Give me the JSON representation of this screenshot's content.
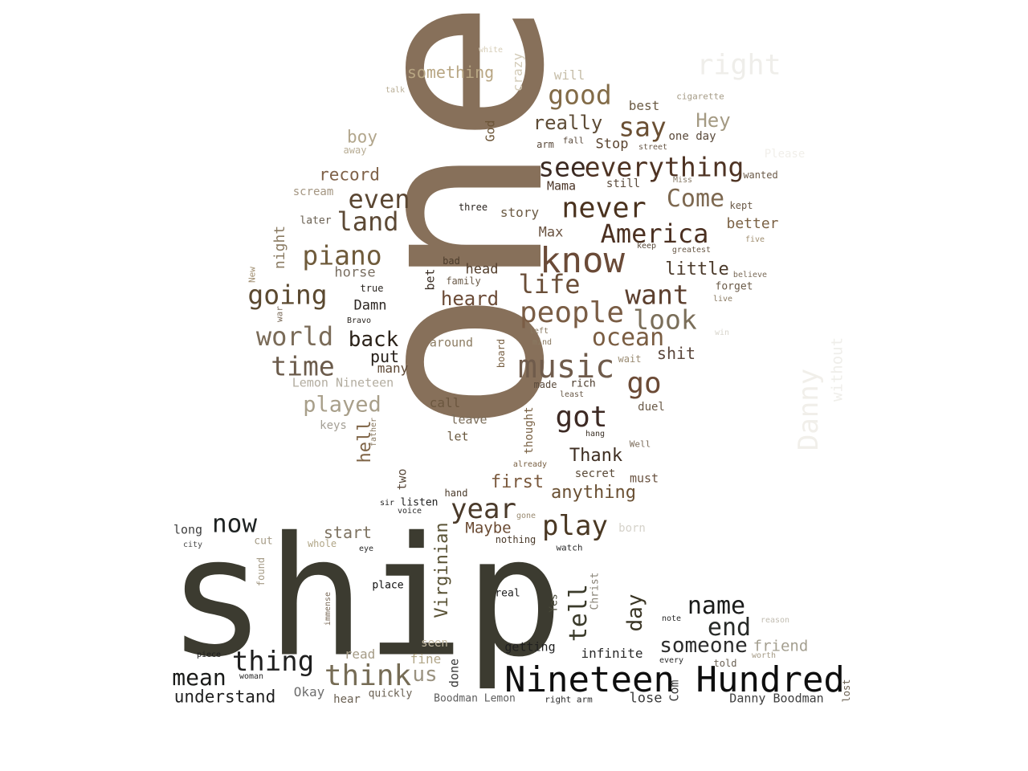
{
  "words": [
    {
      "t": "one",
      "c": "#87705a"
    },
    {
      "t": "ship",
      "c": "#3c3b30"
    },
    {
      "t": "Nineteen Hundred",
      "c": "#0e0e0e"
    },
    {
      "t": "know",
      "c": "#6a4a37"
    },
    {
      "t": "music",
      "c": "#6f5b4b"
    },
    {
      "t": "people",
      "c": "#7a5d45"
    },
    {
      "t": "everything",
      "c": "#4e3323"
    },
    {
      "t": "see",
      "c": "#3b2a22"
    },
    {
      "t": "year",
      "c": "#4a3a2a"
    },
    {
      "t": "play",
      "c": "#4a3823"
    },
    {
      "t": "got",
      "c": "#3d2a24"
    },
    {
      "t": "go",
      "c": "#6b4a35"
    },
    {
      "t": "thing",
      "c": "#1e1e1e"
    },
    {
      "t": "think",
      "c": "#766c55"
    },
    {
      "t": "world",
      "c": "#7a6b58"
    },
    {
      "t": "time",
      "c": "#6b5b4b"
    },
    {
      "t": "going",
      "c": "#5b4930"
    },
    {
      "t": "piano",
      "c": "#6f5b3b"
    },
    {
      "t": "land",
      "c": "#5c4935"
    },
    {
      "t": "even",
      "c": "#5a4632"
    },
    {
      "t": "never",
      "c": "#4a321e"
    },
    {
      "t": "America",
      "c": "#4b3021"
    },
    {
      "t": "life",
      "c": "#6a4e38"
    },
    {
      "t": "want",
      "c": "#5c3f2e"
    },
    {
      "t": "look",
      "c": "#7a6e59"
    },
    {
      "t": "ocean",
      "c": "#7a5d42"
    },
    {
      "t": "good",
      "c": "#826b47"
    },
    {
      "t": "say",
      "c": "#6a4f33"
    },
    {
      "t": "right",
      "c": "#efeeea"
    },
    {
      "t": "Come",
      "c": "#7d6850"
    },
    {
      "t": "name",
      "c": "#1a1b1a"
    },
    {
      "t": "end",
      "c": "#272a27"
    },
    {
      "t": "someone",
      "c": "#2b2b2b"
    },
    {
      "t": "now",
      "c": "#1d2121"
    },
    {
      "t": "mean",
      "c": "#191a18"
    },
    {
      "t": "tell",
      "c": "#3b3b2b"
    },
    {
      "t": "day",
      "c": "#3a3524"
    },
    {
      "t": "played",
      "c": "#a89f8a"
    },
    {
      "t": "back",
      "c": "#2b2219"
    },
    {
      "t": "heard",
      "c": "#6b4b37"
    },
    {
      "t": "really",
      "c": "#5e4c36"
    },
    {
      "t": "record",
      "c": "#7f6148"
    },
    {
      "t": "first",
      "c": "#7b5a3e"
    },
    {
      "t": "anything",
      "c": "#6a5033"
    },
    {
      "t": "Thank",
      "c": "#3e2e22"
    },
    {
      "t": "little",
      "c": "#4b3a2b"
    },
    {
      "t": "Hey",
      "c": "#a49a83"
    },
    {
      "t": "Danny",
      "c": "#f1efea"
    },
    {
      "t": "Virginian",
      "c": "#5a5336"
    },
    {
      "t": "understand",
      "c": "#1f1f1f"
    },
    {
      "t": "Maybe",
      "c": "#6b4b33"
    },
    {
      "t": "start",
      "c": "#7d7260"
    },
    {
      "t": "something",
      "c": "#b8a683"
    },
    {
      "t": "boy",
      "c": "#b2a68c"
    },
    {
      "t": "put",
      "c": "#241d17"
    },
    {
      "t": "shit",
      "c": "#5a463b"
    },
    {
      "t": "us",
      "c": "#9a9280"
    },
    {
      "t": "hell",
      "c": "#7e6345"
    },
    {
      "t": "friend",
      "c": "#a49f90"
    },
    {
      "t": "night",
      "c": "#8a7b62"
    },
    {
      "t": "horse",
      "c": "#7a6f62"
    },
    {
      "t": "Damn",
      "c": "#2c2622"
    },
    {
      "t": "many",
      "c": "#5f4a37"
    },
    {
      "t": "better",
      "c": "#7b6245"
    },
    {
      "t": "best",
      "c": "#6a5a43"
    },
    {
      "t": "Stop",
      "c": "#5c4632"
    },
    {
      "t": "Mama",
      "c": "#4a3426"
    },
    {
      "t": "story",
      "c": "#6b5a43"
    },
    {
      "t": "Max",
      "c": "#6a5341"
    },
    {
      "t": "head",
      "c": "#55402e"
    },
    {
      "t": "Okay",
      "c": "#6e6e6e"
    },
    {
      "t": "long",
      "c": "#3e3e3e"
    },
    {
      "t": "read",
      "c": "#a59b86"
    },
    {
      "t": "fine",
      "c": "#b1a687"
    },
    {
      "t": "call",
      "c": "#6b573f"
    },
    {
      "t": "leave",
      "c": "#7b6d5a"
    },
    {
      "t": "let",
      "c": "#6b5a40"
    },
    {
      "t": "around",
      "c": "#8c7c62"
    },
    {
      "t": "without",
      "c": "#efeeea"
    },
    {
      "t": "must",
      "c": "#6a5341"
    },
    {
      "t": "secret",
      "c": "#5a4a38"
    },
    {
      "t": "getting",
      "c": "#1f1f1f"
    },
    {
      "t": "infinite",
      "c": "#2a2a2a"
    },
    {
      "t": "lose",
      "c": "#3a3a3a"
    },
    {
      "t": "Danny Boodman",
      "c": "#3f3f3f"
    },
    {
      "t": "Boodman Lemon",
      "c": "#5d5d5d"
    },
    {
      "t": "Lemon Nineteen",
      "c": "#b3ada0"
    },
    {
      "t": "keys",
      "c": "#a49f95"
    },
    {
      "t": "scream",
      "c": "#a49682"
    },
    {
      "t": "later",
      "c": "#6a6052"
    },
    {
      "t": "will",
      "c": "#c6bda8"
    },
    {
      "t": "crazy",
      "c": "#d3cbb8"
    },
    {
      "t": "God",
      "c": "#6b5437"
    },
    {
      "t": "arm",
      "c": "#5a4a3b"
    },
    {
      "t": "fall",
      "c": "#5a4a3b"
    },
    {
      "t": "one day",
      "c": "#5a4a3b"
    },
    {
      "t": "street",
      "c": "#6a5a4a"
    },
    {
      "t": "still",
      "c": "#5a4a3b"
    },
    {
      "t": "Miss",
      "c": "#8a7d6a"
    },
    {
      "t": "wanted",
      "c": "#6b5a48"
    },
    {
      "t": "kept",
      "c": "#6b5a48"
    },
    {
      "t": "three",
      "c": "#2b2520"
    },
    {
      "t": "keep",
      "c": "#5a4a3b"
    },
    {
      "t": "greatest",
      "c": "#6a5a48"
    },
    {
      "t": "five",
      "c": "#a08e70"
    },
    {
      "t": "believe",
      "c": "#7a6a58"
    },
    {
      "t": "forget",
      "c": "#6a5a48"
    },
    {
      "t": "live",
      "c": "#8a7a62"
    },
    {
      "t": "win",
      "c": "#d8d5cc"
    },
    {
      "t": "wait",
      "c": "#9a8b72"
    },
    {
      "t": "rich",
      "c": "#4a3a2a"
    },
    {
      "t": "made",
      "c": "#5a4a3b"
    },
    {
      "t": "least",
      "c": "#6a5a48"
    },
    {
      "t": "duel",
      "c": "#6a5a48"
    },
    {
      "t": "hang",
      "c": "#3a3025"
    },
    {
      "t": "Well",
      "c": "#7a6a58"
    },
    {
      "t": "thought",
      "c": "#7a6245"
    },
    {
      "t": "already",
      "c": "#7a6245"
    },
    {
      "t": "left",
      "c": "#8a7a62"
    },
    {
      "t": "mind",
      "c": "#8a7a62"
    },
    {
      "t": "board",
      "c": "#7a6245"
    },
    {
      "t": "bad",
      "c": "#4a3a2a"
    },
    {
      "t": "family",
      "c": "#6a5a48"
    },
    {
      "t": "bet",
      "c": "#3a2e25"
    },
    {
      "t": "true",
      "c": "#2a2520"
    },
    {
      "t": "Bravo",
      "c": "#2a2520"
    },
    {
      "t": "New",
      "c": "#a08e70"
    },
    {
      "t": "war",
      "c": "#7a6a58"
    },
    {
      "t": "father",
      "c": "#8a7a62"
    },
    {
      "t": "two",
      "c": "#5a4a3b"
    },
    {
      "t": "hand",
      "c": "#4a3a2a"
    },
    {
      "t": "sir",
      "c": "#1f1f1f"
    },
    {
      "t": "listen",
      "c": "#1f1f1f"
    },
    {
      "t": "voice",
      "c": "#2a2a2a"
    },
    {
      "t": "gone",
      "c": "#9a8b72"
    },
    {
      "t": "nothing",
      "c": "#4a3a2a"
    },
    {
      "t": "watch",
      "c": "#2a2a2a"
    },
    {
      "t": "born",
      "c": "#d5d2ca"
    },
    {
      "t": "eye",
      "c": "#2a2a2a"
    },
    {
      "t": "whole",
      "c": "#b1a687"
    },
    {
      "t": "cut",
      "c": "#a59b86"
    },
    {
      "t": "city",
      "c": "#4a4a4a"
    },
    {
      "t": "found",
      "c": "#a59b86"
    },
    {
      "t": "place",
      "c": "#0e0e0e"
    },
    {
      "t": "real",
      "c": "#1f1f1f"
    },
    {
      "t": "immense",
      "c": "#7a6a58"
    },
    {
      "t": "Yes",
      "c": "#4a4a3a"
    },
    {
      "t": "Christ",
      "c": "#8a8478"
    },
    {
      "t": "seen",
      "c": "#c2b8a0"
    },
    {
      "t": "done",
      "c": "#3a3a3a"
    },
    {
      "t": "piece",
      "c": "#1f1f1f"
    },
    {
      "t": "woman",
      "c": "#2a2a2a"
    },
    {
      "t": "hear",
      "c": "#6a6052"
    },
    {
      "t": "quickly",
      "c": "#6a6052"
    },
    {
      "t": "right arm",
      "c": "#2a2a2a"
    },
    {
      "t": "Com",
      "c": "#3a3a3a"
    },
    {
      "t": "note",
      "c": "#2a2a2a"
    },
    {
      "t": "every",
      "c": "#2a2a2a"
    },
    {
      "t": "told",
      "c": "#6a6052"
    },
    {
      "t": "worth",
      "c": "#a59b86"
    },
    {
      "t": "reason",
      "c": "#c2bdb2"
    },
    {
      "t": "lost",
      "c": "#6a6052"
    },
    {
      "t": "white",
      "c": "#d6cdb7"
    },
    {
      "t": "talk",
      "c": "#b8ad95"
    },
    {
      "t": "away",
      "c": "#b8ad95"
    },
    {
      "t": "cigarette",
      "c": "#a59b86"
    },
    {
      "t": "Please",
      "c": "#f1efea"
    }
  ]
}
